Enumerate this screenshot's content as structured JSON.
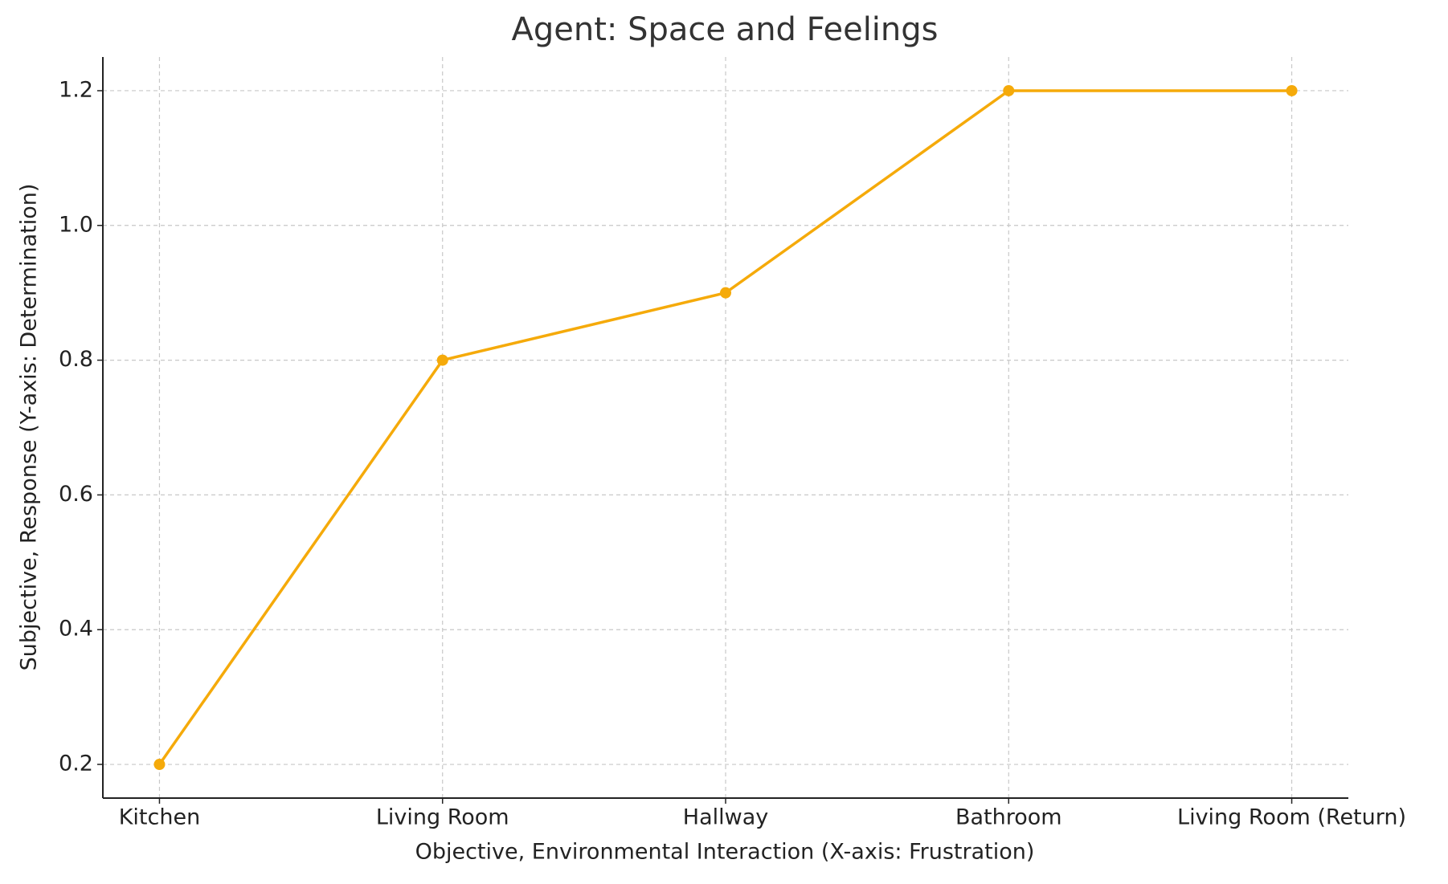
{
  "chart_data": {
    "type": "line",
    "title": "Agent: Space and Feelings",
    "x_label": "Objective, Environmental Interaction (X-axis: Frustration)",
    "y_label": "Subjective, Response (Y-axis: Determination)",
    "categories": [
      "Kitchen",
      "Living Room",
      "Hallway",
      "Bathroom",
      "Living Room (Return)"
    ],
    "values": [
      0.2,
      0.8,
      0.9,
      1.2,
      1.2
    ],
    "color": "#f5aa0a",
    "ylim": [
      0.15,
      1.25
    ],
    "yticks": [
      {
        "value": 0.2,
        "label": "0.2"
      },
      {
        "value": 0.4,
        "label": "0.4"
      },
      {
        "value": 0.6,
        "label": "0.6"
      },
      {
        "value": 0.8,
        "label": "0.8"
      },
      {
        "value": 1.0,
        "label": "1.0"
      },
      {
        "value": 1.2,
        "label": "1.2"
      }
    ],
    "grid": true
  }
}
